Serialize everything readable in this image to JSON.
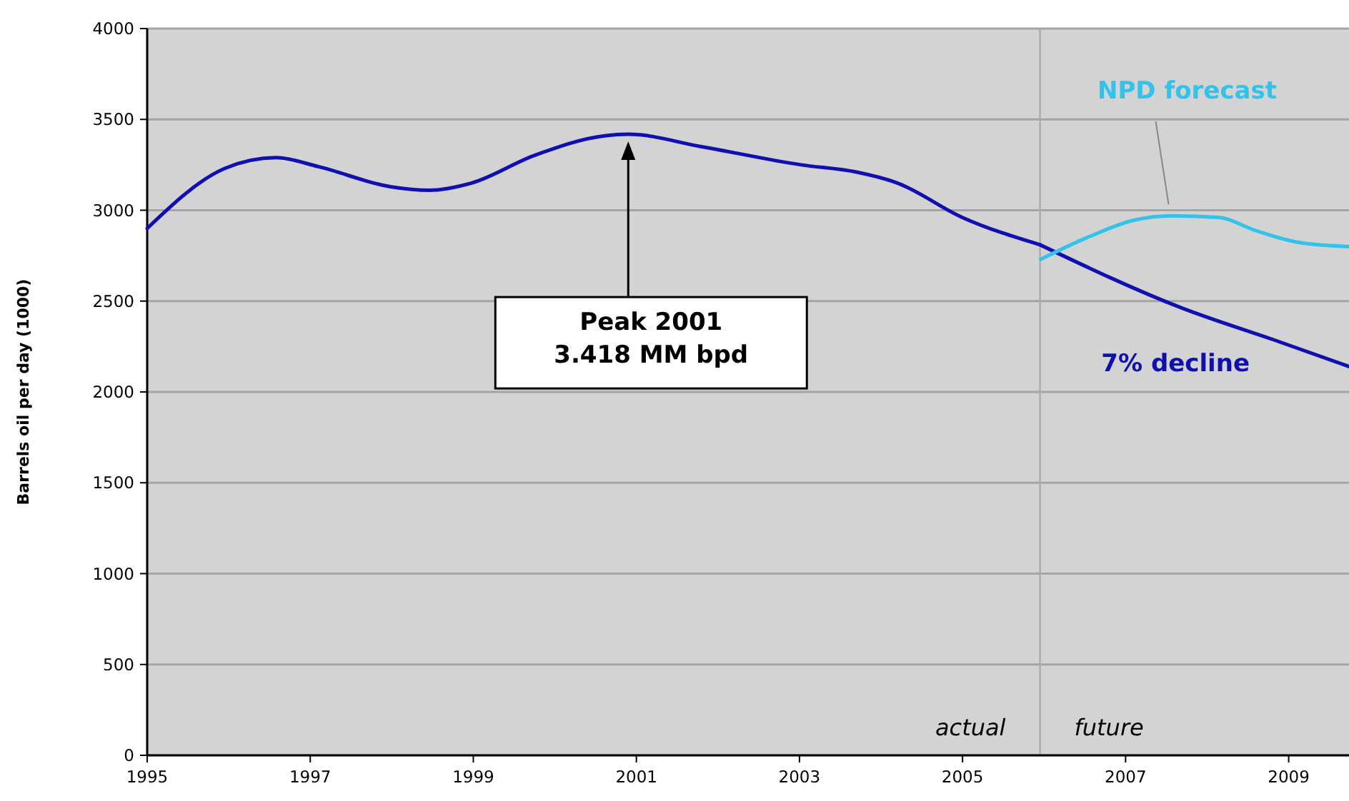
{
  "chart_data": {
    "type": "line",
    "ylabel": "Barrels oil per day (1000)",
    "xlim": [
      1995,
      2009.74
    ],
    "xticks": [
      1995,
      1997,
      1999,
      2001,
      2003,
      2005,
      2007,
      2009
    ],
    "ylim": [
      0,
      4000
    ],
    "yticks": [
      0,
      500,
      1000,
      1500,
      2000,
      2500,
      3000,
      3500,
      4000
    ],
    "grid": "y",
    "series": [
      {
        "color": "#1010b0",
        "x": [
          1995,
          1995.95,
          1996.58,
          1997.1,
          1997.98,
          1998.46,
          1998.98,
          1999.74,
          2000.61,
          2000.9,
          2001.8,
          2003.02,
          2003.7,
          2004.2,
          2005.0,
          2005.95
        ],
        "values": [
          2900,
          3230,
          3290,
          3240,
          3130,
          3110,
          3150,
          3300,
          3410,
          3418,
          3350,
          3250,
          3210,
          3150,
          2960,
          2810
        ]
      },
      {
        "name": "7% decline",
        "color": "#1010b0",
        "x": [
          2005.95,
          2007.7,
          2008.86,
          2009.74
        ],
        "values": [
          2810,
          2460,
          2280,
          2140
        ]
      },
      {
        "name": "NPD forecast",
        "color": "#33c3ea",
        "x": [
          2005.96,
          2006.53,
          2007.1,
          2007.58,
          2008.16,
          2008.58,
          2009.16,
          2009.74
        ],
        "values": [
          2730,
          2850,
          2945,
          2970,
          2960,
          2890,
          2820,
          2800
        ]
      }
    ],
    "ref_lines": [
      {
        "axis": "x",
        "value": 2005.95,
        "color": "#aaaaaa"
      }
    ],
    "annotations": [
      "Peak 2001\n3.418 MM bpd",
      "actual",
      "future"
    ]
  }
}
